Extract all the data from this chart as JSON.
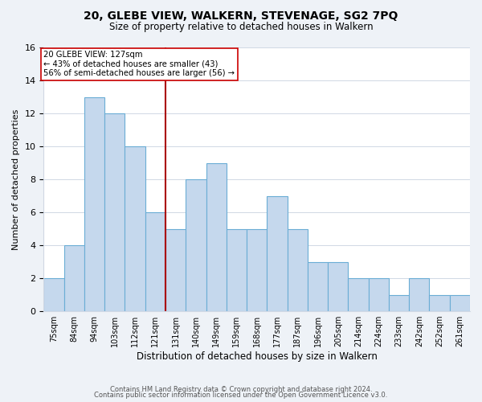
{
  "title": "20, GLEBE VIEW, WALKERN, STEVENAGE, SG2 7PQ",
  "subtitle": "Size of property relative to detached houses in Walkern",
  "xlabel": "Distribution of detached houses by size in Walkern",
  "ylabel": "Number of detached properties",
  "bar_color": "#c5d8ed",
  "bar_edge_color": "#6aadd5",
  "bin_labels": [
    "75sqm",
    "84sqm",
    "94sqm",
    "103sqm",
    "112sqm",
    "121sqm",
    "131sqm",
    "140sqm",
    "149sqm",
    "159sqm",
    "168sqm",
    "177sqm",
    "187sqm",
    "196sqm",
    "205sqm",
    "214sqm",
    "224sqm",
    "233sqm",
    "242sqm",
    "252sqm",
    "261sqm"
  ],
  "values": [
    2,
    4,
    13,
    12,
    10,
    6,
    5,
    8,
    9,
    5,
    5,
    7,
    5,
    3,
    3,
    2,
    2,
    1,
    2,
    1,
    1
  ],
  "vline_bin": 5.5,
  "vline_color": "#aa0000",
  "annotation_text_line1": "20 GLEBE VIEW: 127sqm",
  "annotation_text_line2": "← 43% of detached houses are smaller (43)",
  "annotation_text_line3": "56% of semi-detached houses are larger (56) →",
  "ylim": [
    0,
    16
  ],
  "yticks": [
    0,
    2,
    4,
    6,
    8,
    10,
    12,
    14,
    16
  ],
  "footer_line1": "Contains HM Land Registry data © Crown copyright and database right 2024.",
  "footer_line2": "Contains public sector information licensed under the Open Government Licence v3.0.",
  "background_color": "#eef2f7",
  "plot_bg_color": "#ffffff",
  "grid_color": "#d0d8e4"
}
